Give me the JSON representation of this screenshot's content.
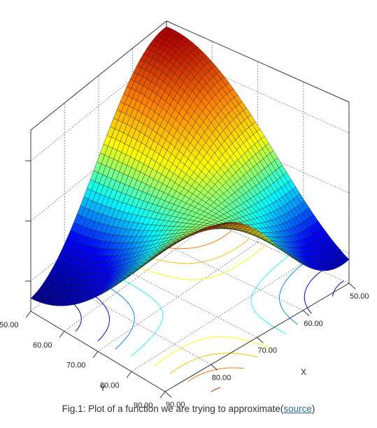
{
  "chart_data": {
    "type": "surface3d",
    "x_axis": {
      "label": "X",
      "range": [
        50,
        90
      ],
      "ticks": [
        "50.00",
        "60.00",
        "70.00",
        "80.00",
        "90.00"
      ]
    },
    "y_axis": {
      "label": "Y",
      "range": [
        50,
        90
      ],
      "ticks": [
        "50.00",
        "60.00",
        "70.00",
        "80.00",
        "90.00"
      ]
    },
    "z_axis": {
      "label": "",
      "range": [
        -1,
        1
      ],
      "tick_count": 3
    },
    "surface": {
      "description_function": "sine-like saddle surface",
      "grid": 41,
      "colormap": [
        "#00008f",
        "#0000ff",
        "#00ffff",
        "#ffff00",
        "#ff8000",
        "#b40000"
      ]
    },
    "contours_on_floor": true,
    "grid": true
  },
  "caption": {
    "text": "Fig.1: Plot of a function we are trying to approximate(",
    "link": "source",
    "suffix": ")"
  }
}
